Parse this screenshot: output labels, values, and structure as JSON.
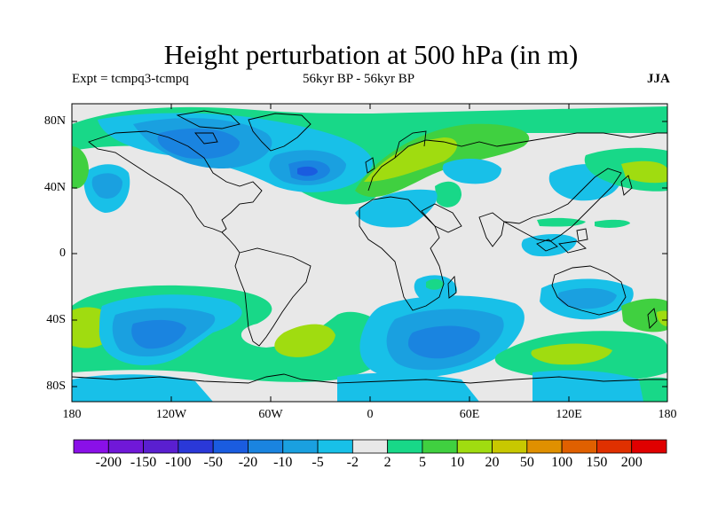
{
  "title": "Height perturbation at 500 hPa (in m)",
  "subtitle_left": "Expt = tcmpq3-tcmpq",
  "subtitle_center": "56kyr BP - 56kyr BP",
  "subtitle_right": "JJA",
  "lat_labels": [
    "80N",
    "40N",
    "0",
    "40S",
    "80S"
  ],
  "lon_labels": [
    "180",
    "120W",
    "60W",
    "0",
    "60E",
    "120E",
    "180"
  ],
  "colorbar": {
    "labels": [
      "-200",
      "-150",
      "-100",
      "-50",
      "-20",
      "-10",
      "-5",
      "-2",
      "2",
      "5",
      "10",
      "20",
      "50",
      "100",
      "150",
      "200"
    ],
    "colors": [
      "#8a10e8",
      "#7018d8",
      "#5a1fd0",
      "#2a38d8",
      "#1a5ce0",
      "#1a84e0",
      "#1aa0e0",
      "#18c0e8",
      "#e8e8e8",
      "#18d888",
      "#40d040",
      "#a0dc10",
      "#c8c800",
      "#e09000",
      "#e06000",
      "#e03000",
      "#e00000"
    ]
  },
  "map": {
    "background_color": "#e8e8e8",
    "features": [
      {
        "name": "cyan",
        "color": "#18c0e8"
      },
      {
        "name": "blue",
        "color": "#1aa0e0"
      },
      {
        "name": "dark-blue",
        "color": "#1a84e0"
      },
      {
        "name": "green",
        "color": "#18d888"
      },
      {
        "name": "light-green",
        "color": "#40d040"
      },
      {
        "name": "yellow-green",
        "color": "#a0dc10"
      }
    ]
  }
}
